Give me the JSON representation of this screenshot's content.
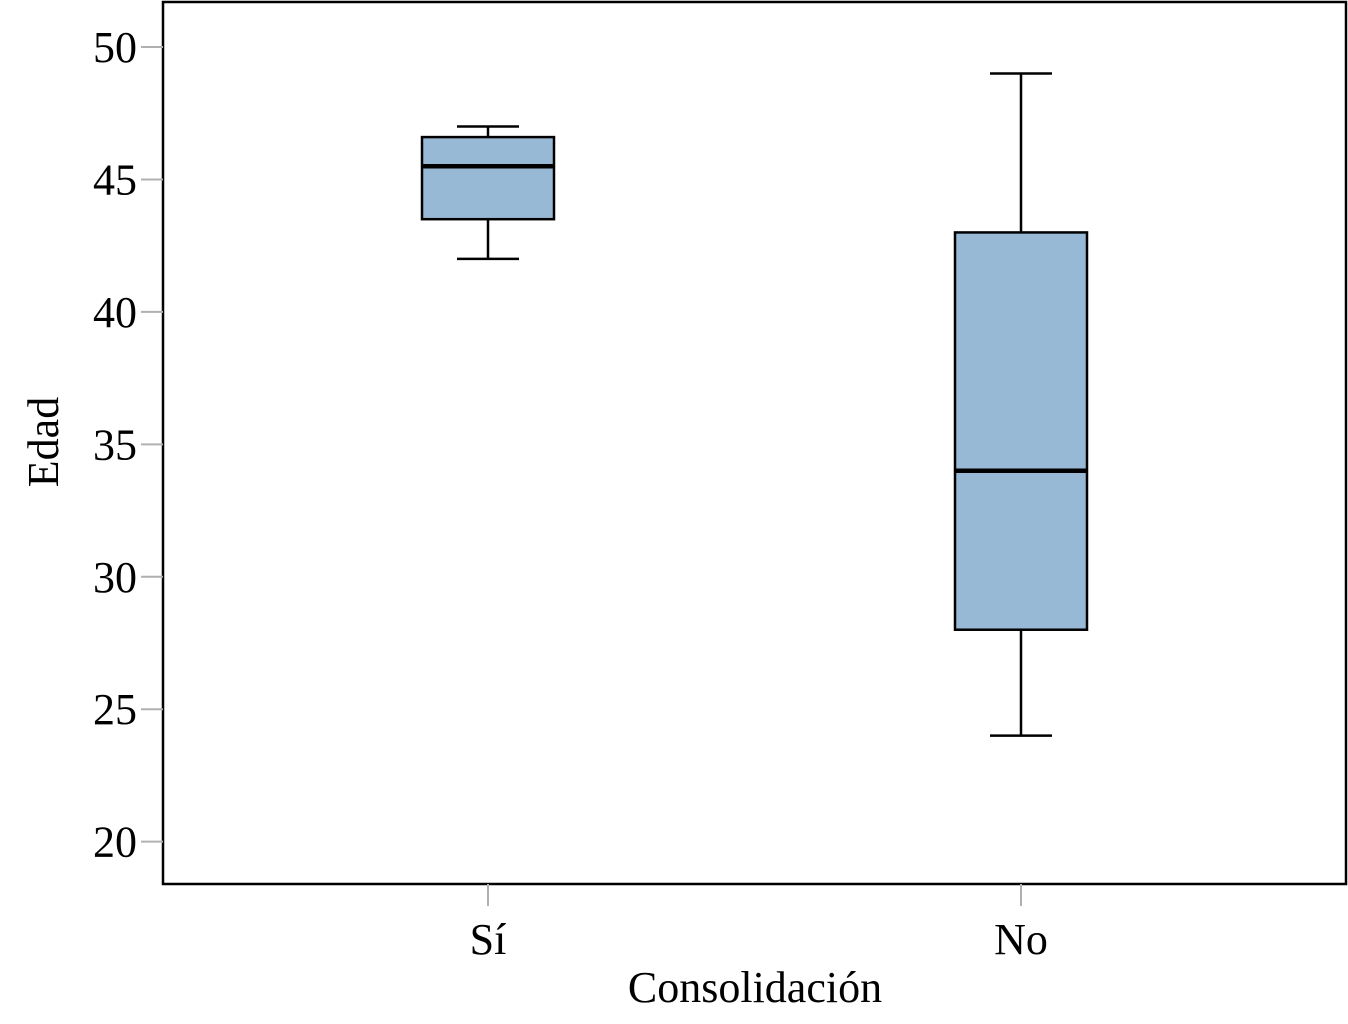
{
  "chart_data": {
    "type": "boxplot",
    "xlabel": "Consolidación",
    "ylabel": "Edad",
    "ylim": [
      18.4,
      51.7
    ],
    "yticks": [
      20,
      25,
      30,
      35,
      40,
      45,
      50
    ],
    "grid": false,
    "box_color": "#97b9d6",
    "categories": [
      "Sí",
      "No"
    ],
    "boxes": [
      {
        "category": "Sí",
        "min": 42,
        "q1": 43.5,
        "median": 45.5,
        "q3": 46.6,
        "max": 47
      },
      {
        "category": "No",
        "min": 24,
        "q1": 28,
        "median": 34,
        "q3": 43,
        "max": 49
      }
    ]
  }
}
